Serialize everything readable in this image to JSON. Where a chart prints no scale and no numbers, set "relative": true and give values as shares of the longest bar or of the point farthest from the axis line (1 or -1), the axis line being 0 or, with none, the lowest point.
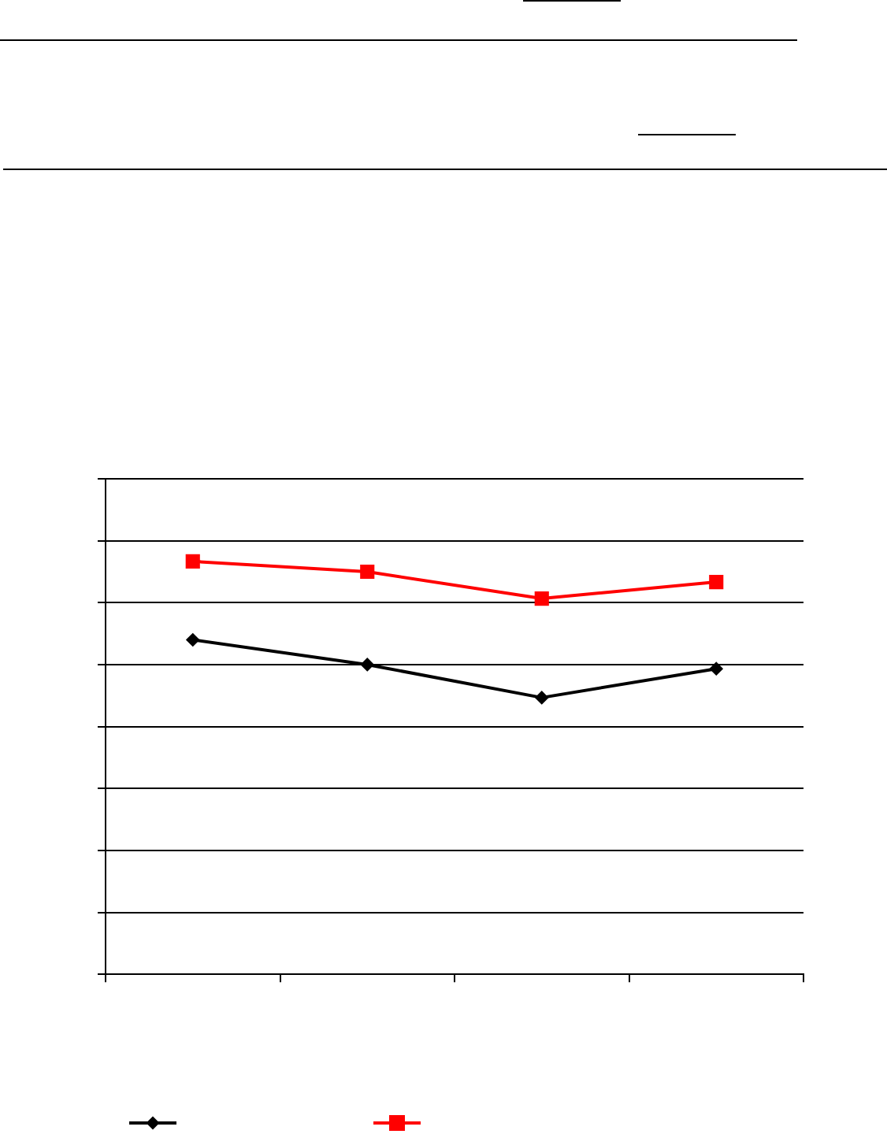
{
  "chart_data": {
    "type": "line",
    "relative": true,
    "categories": [
      null,
      null,
      null,
      null
    ],
    "series": [
      {
        "color": "#000000",
        "marker": "diamond",
        "values": [
          0.81,
          0.75,
          0.67,
          0.74
        ]
      },
      {
        "color": "#ff0000",
        "marker": "square",
        "values": [
          1,
          0.975,
          0.91,
          0.95
        ]
      }
    ],
    "grid": "y",
    "line_style": "solid"
  }
}
